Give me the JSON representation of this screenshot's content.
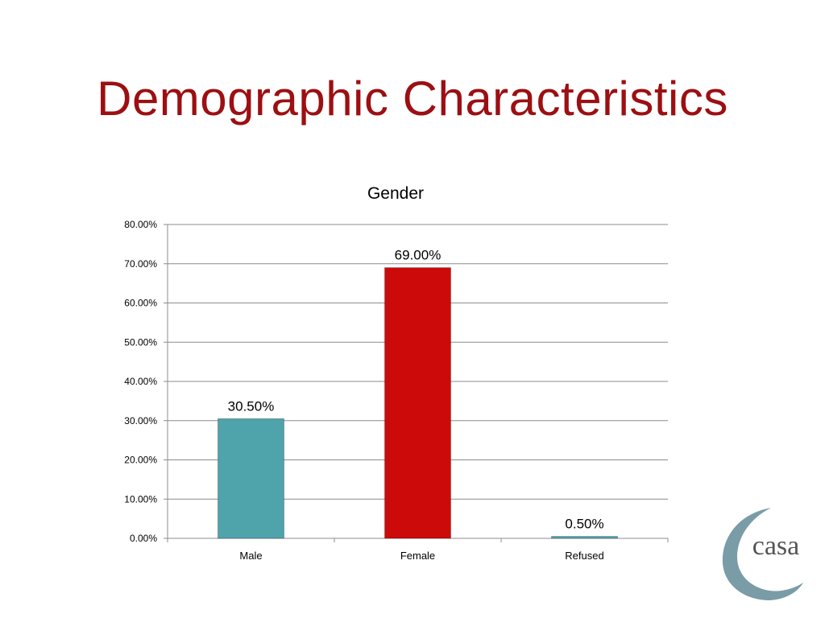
{
  "slide": {
    "title": "Demographic Characteristics"
  },
  "chart_data": {
    "type": "bar",
    "title": "Gender",
    "categories": [
      "Male",
      "Female",
      "Refused"
    ],
    "values": [
      30.5,
      69.0,
      0.5
    ],
    "value_labels": [
      "30.50%",
      "69.00%",
      "0.50%"
    ],
    "colors": [
      "#4fa3aa",
      "#cc0a0a",
      "#4fa3aa"
    ],
    "ylim": [
      0,
      80
    ],
    "yticks": [
      0,
      10,
      20,
      30,
      40,
      50,
      60,
      70,
      80
    ],
    "ytick_labels": [
      "0.00%",
      "10.00%",
      "20.00%",
      "30.00%",
      "40.00%",
      "50.00%",
      "60.00%",
      "70.00%",
      "80.00%"
    ],
    "xlabel": "",
    "ylabel": "",
    "grid": true,
    "legend": "none"
  },
  "logo": {
    "text": "casa",
    "color": "#7a9ca6"
  }
}
